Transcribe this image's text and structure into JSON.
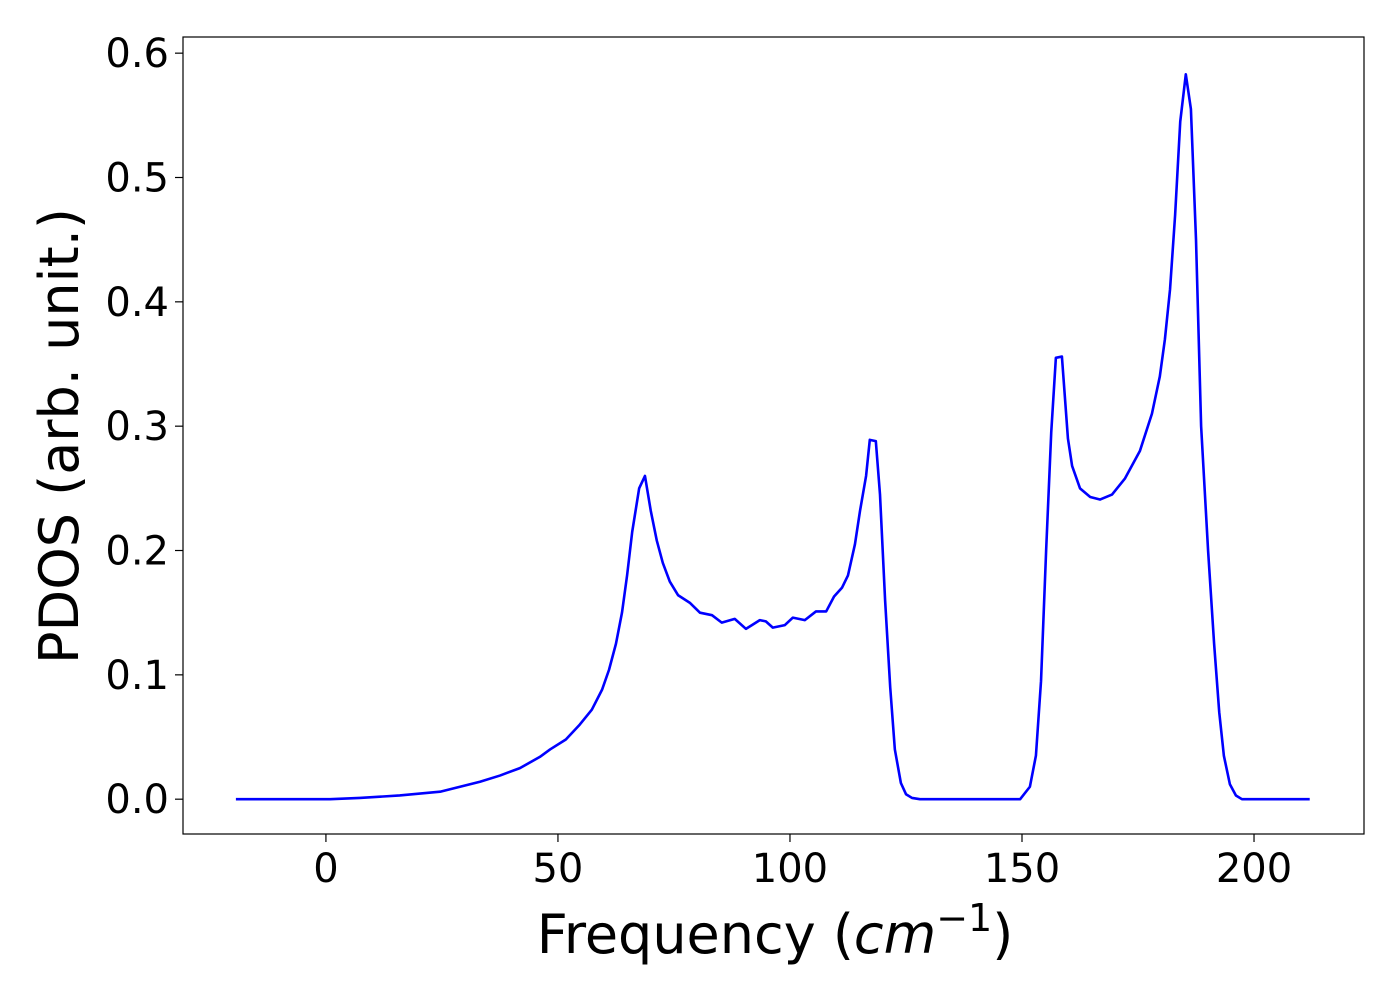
{
  "chart_data": {
    "type": "line",
    "xlabel": [
      "Frequency (",
      "cm",
      "−1",
      ")"
    ],
    "ylabel": "PDOS (arb. unit.)",
    "x": [
      -19.4,
      0.9,
      7.3,
      15.9,
      24.6,
      28.9,
      33.2,
      37.5,
      41.8,
      46.1,
      48.3,
      51.7,
      54.7,
      57.3,
      59.5,
      61,
      62.5,
      63.8,
      64.9,
      66,
      67.5,
      68.75,
      70,
      71.3,
      72.6,
      74.1,
      75.9,
      78.4,
      80.6,
      83.2,
      85.3,
      88.1,
      90.5,
      91.8,
      93.5,
      94.8,
      96.3,
      98.9,
      100.6,
      103.2,
      105.6,
      107.8,
      109.5,
      111.2,
      112.5,
      114,
      115.1,
      116.4,
      117.2,
      118.5,
      119.4,
      120.5,
      121.6,
      122.6,
      123.9,
      125,
      126.3,
      128,
      149.6,
      151.7,
      153,
      154.1,
      155.2,
      156.3,
      157.3,
      158.6,
      159.9,
      160.8,
      162.5,
      164.7,
      166.8,
      169.4,
      172.2,
      175.4,
      178,
      179.7,
      180.8,
      181.9,
      183,
      184.1,
      185.3,
      186.4,
      187.5,
      188.6,
      190.1,
      191.4,
      192.5,
      193.5,
      194.8,
      196.1,
      197.4,
      212
    ],
    "values": [
      0,
      0,
      0.001,
      0.003,
      0.006,
      0.01,
      0.014,
      0.019,
      0.025,
      0.034,
      0.04,
      0.048,
      0.06,
      0.072,
      0.088,
      0.104,
      0.125,
      0.15,
      0.18,
      0.215,
      0.25,
      0.26,
      0.232,
      0.208,
      0.19,
      0.175,
      0.164,
      0.158,
      0.15,
      0.148,
      0.142,
      0.145,
      0.137,
      0.14,
      0.144,
      0.143,
      0.138,
      0.14,
      0.146,
      0.144,
      0.151,
      0.151,
      0.163,
      0.17,
      0.18,
      0.205,
      0.232,
      0.26,
      0.289,
      0.288,
      0.245,
      0.16,
      0.09,
      0.04,
      0.013,
      0.004,
      0.001,
      0,
      0,
      0.01,
      0.035,
      0.095,
      0.2,
      0.295,
      0.355,
      0.356,
      0.29,
      0.268,
      0.25,
      0.243,
      0.241,
      0.245,
      0.258,
      0.28,
      0.31,
      0.34,
      0.37,
      0.41,
      0.47,
      0.545,
      0.583,
      0.555,
      0.45,
      0.3,
      0.2,
      0.125,
      0.07,
      0.035,
      0.012,
      0.003,
      0,
      0
    ],
    "color": "#0000ff",
    "xlim": [
      -30.8,
      223.7
    ],
    "ylim": [
      -0.028,
      0.613
    ],
    "xticks": [
      0,
      50,
      100,
      150,
      200
    ],
    "yticks": [
      {
        "value": 0,
        "label": "0.0"
      },
      0.1,
      0.2,
      0.3,
      0.4,
      0.5,
      0.6
    ]
  }
}
